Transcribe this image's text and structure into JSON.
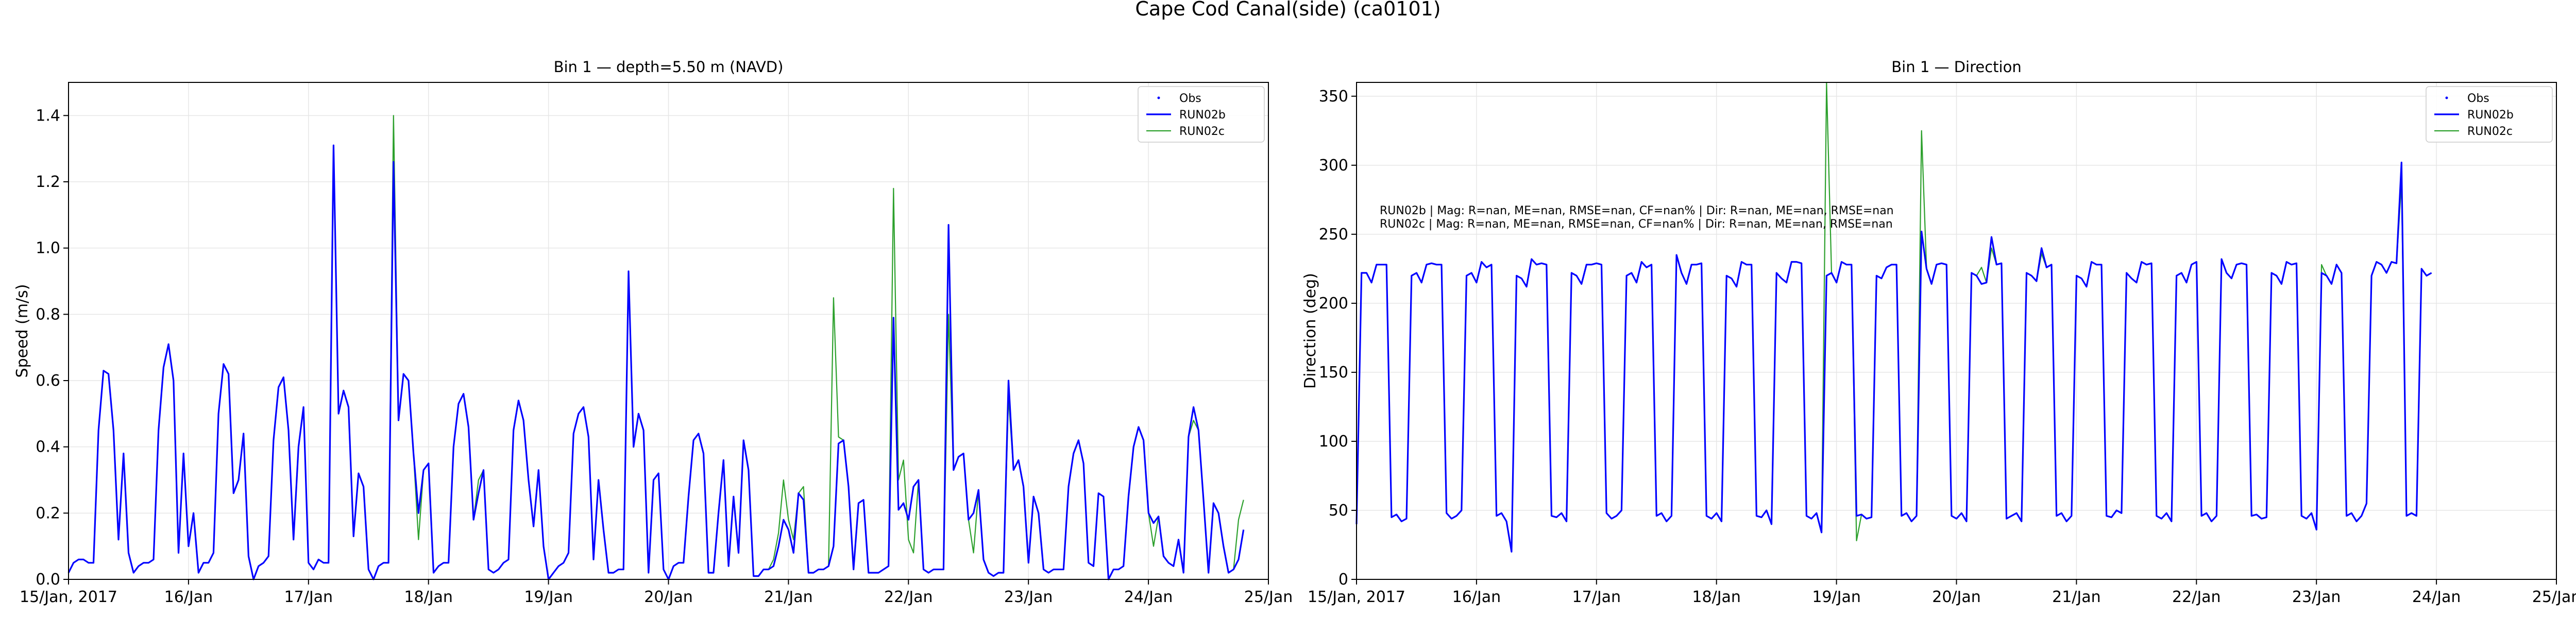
{
  "suptitle": "Cape Cod Canal(side) (ca0101)",
  "colors": {
    "obs": "#0000ff",
    "run02b": "#0000ff",
    "run02c": "#2ca02c",
    "grid": "#e6e6e6",
    "axis": "#000000"
  },
  "chart_data": [
    {
      "type": "line",
      "title": "Bin 1 — depth=5.50 m (NAVD)",
      "xlabel": "",
      "ylabel": "Speed (m/s)",
      "xlim": [
        0,
        10
      ],
      "ylim": [
        0,
        1.5
      ],
      "x_ticks": [
        0,
        1,
        2,
        3,
        4,
        5,
        6,
        7,
        8,
        9,
        10
      ],
      "x_tick_labels": [
        "15/Jan, 2017",
        "16/Jan",
        "17/Jan",
        "18/Jan",
        "19/Jan",
        "20/Jan",
        "21/Jan",
        "22/Jan",
        "23/Jan",
        "24/Jan",
        "25/Jan"
      ],
      "y_ticks": [
        0.0,
        0.2,
        0.4,
        0.6,
        0.8,
        1.0,
        1.2,
        1.4
      ],
      "y_tick_labels": [
        "0.0",
        "0.2",
        "0.4",
        "0.6",
        "0.8",
        "1.0",
        "1.2",
        "1.4"
      ],
      "grid": true,
      "legend_position": "top-right",
      "legend": [
        "Obs",
        "RUN02b",
        "RUN02c"
      ],
      "x_step_days": 0.04167,
      "series": [
        {
          "name": "Obs",
          "style": "markers",
          "values": []
        },
        {
          "name": "RUN02b",
          "style": "line",
          "values": [
            0.02,
            0.05,
            0.06,
            0.06,
            0.05,
            0.05,
            0.45,
            0.63,
            0.62,
            0.45,
            0.12,
            0.38,
            0.08,
            0.02,
            0.04,
            0.05,
            0.05,
            0.06,
            0.45,
            0.64,
            0.71,
            0.6,
            0.08,
            0.38,
            0.1,
            0.2,
            0.02,
            0.05,
            0.05,
            0.08,
            0.5,
            0.65,
            0.62,
            0.26,
            0.3,
            0.44,
            0.07,
            0.0,
            0.04,
            0.05,
            0.07,
            0.42,
            0.58,
            0.61,
            0.45,
            0.12,
            0.4,
            0.52,
            0.05,
            0.03,
            0.06,
            0.05,
            0.05,
            1.31,
            0.5,
            0.57,
            0.52,
            0.13,
            0.32,
            0.28,
            0.03,
            0.0,
            0.04,
            0.05,
            0.05,
            1.26,
            0.48,
            0.62,
            0.6,
            0.38,
            0.2,
            0.33,
            0.35,
            0.02,
            0.04,
            0.05,
            0.05,
            0.4,
            0.53,
            0.56,
            0.46,
            0.18,
            0.26,
            0.33,
            0.03,
            0.02,
            0.03,
            0.05,
            0.06,
            0.45,
            0.54,
            0.48,
            0.3,
            0.16,
            0.33,
            0.1,
            0.0,
            0.02,
            0.04,
            0.05,
            0.08,
            0.44,
            0.5,
            0.52,
            0.43,
            0.06,
            0.3,
            0.15,
            0.02,
            0.02,
            0.03,
            0.03,
            0.93,
            0.4,
            0.5,
            0.45,
            0.02,
            0.3,
            0.32,
            0.03,
            0.0,
            0.04,
            0.05,
            0.05,
            0.25,
            0.42,
            0.44,
            0.38,
            0.02,
            0.02,
            0.2,
            0.36,
            0.04,
            0.25,
            0.08,
            0.42,
            0.33,
            0.01,
            0.01,
            0.03,
            0.03,
            0.04,
            0.1,
            0.18,
            0.15,
            0.08,
            0.26,
            0.24,
            0.02,
            0.02,
            0.03,
            0.03,
            0.04,
            0.1,
            0.41,
            0.42,
            0.28,
            0.03,
            0.23,
            0.24,
            0.02,
            0.02,
            0.02,
            0.03,
            0.04,
            0.79,
            0.21,
            0.23,
            0.18,
            0.28,
            0.3,
            0.03,
            0.02,
            0.03,
            0.03,
            0.03,
            1.07,
            0.33,
            0.37,
            0.38,
            0.18,
            0.2,
            0.27,
            0.06,
            0.02,
            0.01,
            0.02,
            0.02,
            0.6,
            0.33,
            0.36,
            0.28,
            0.05,
            0.25,
            0.2,
            0.03,
            0.02,
            0.03,
            0.03,
            0.03,
            0.28,
            0.38,
            0.42,
            0.35,
            0.05,
            0.04,
            0.26,
            0.25,
            0.0,
            0.03,
            0.03,
            0.04,
            0.25,
            0.4,
            0.46,
            0.42,
            0.2,
            0.17,
            0.19,
            0.07,
            0.05,
            0.04,
            0.12,
            0.02,
            0.43,
            0.52,
            0.45,
            0.24,
            0.02,
            0.23,
            0.2,
            0.1,
            0.02,
            0.03,
            0.06,
            0.15
          ]
        },
        {
          "name": "RUN02c",
          "style": "line",
          "values": [
            0.02,
            0.05,
            0.06,
            0.06,
            0.05,
            0.05,
            0.45,
            0.63,
            0.62,
            0.45,
            0.12,
            0.38,
            0.08,
            0.02,
            0.04,
            0.05,
            0.05,
            0.06,
            0.45,
            0.64,
            0.71,
            0.6,
            0.08,
            0.38,
            0.1,
            0.2,
            0.02,
            0.05,
            0.05,
            0.08,
            0.5,
            0.65,
            0.62,
            0.26,
            0.3,
            0.44,
            0.07,
            0.0,
            0.04,
            0.05,
            0.07,
            0.42,
            0.58,
            0.61,
            0.45,
            0.12,
            0.4,
            0.52,
            0.05,
            0.03,
            0.06,
            0.05,
            0.05,
            1.31,
            0.5,
            0.57,
            0.52,
            0.13,
            0.32,
            0.28,
            0.03,
            0.0,
            0.04,
            0.05,
            0.05,
            1.4,
            0.48,
            0.62,
            0.6,
            0.38,
            0.12,
            0.33,
            0.35,
            0.02,
            0.04,
            0.05,
            0.05,
            0.4,
            0.53,
            0.56,
            0.46,
            0.18,
            0.3,
            0.33,
            0.03,
            0.02,
            0.03,
            0.05,
            0.06,
            0.45,
            0.54,
            0.48,
            0.3,
            0.16,
            0.33,
            0.1,
            0.0,
            0.02,
            0.04,
            0.05,
            0.08,
            0.44,
            0.5,
            0.52,
            0.43,
            0.06,
            0.3,
            0.15,
            0.02,
            0.02,
            0.03,
            0.03,
            0.93,
            0.4,
            0.5,
            0.45,
            0.02,
            0.3,
            0.32,
            0.03,
            0.0,
            0.04,
            0.05,
            0.05,
            0.25,
            0.42,
            0.44,
            0.38,
            0.02,
            0.02,
            0.2,
            0.36,
            0.04,
            0.25,
            0.08,
            0.42,
            0.33,
            0.01,
            0.01,
            0.03,
            0.03,
            0.06,
            0.14,
            0.3,
            0.18,
            0.12,
            0.26,
            0.28,
            0.02,
            0.02,
            0.03,
            0.03,
            0.04,
            0.85,
            0.43,
            0.42,
            0.28,
            0.03,
            0.23,
            0.24,
            0.02,
            0.02,
            0.02,
            0.03,
            0.04,
            1.18,
            0.3,
            0.36,
            0.12,
            0.08,
            0.3,
            0.03,
            0.02,
            0.03,
            0.03,
            0.03,
            0.8,
            0.33,
            0.37,
            0.38,
            0.18,
            0.08,
            0.27,
            0.06,
            0.02,
            0.01,
            0.02,
            0.02,
            0.55,
            0.33,
            0.36,
            0.28,
            0.05,
            0.25,
            0.2,
            0.03,
            0.02,
            0.03,
            0.03,
            0.03,
            0.28,
            0.38,
            0.42,
            0.35,
            0.05,
            0.04,
            0.26,
            0.25,
            0.0,
            0.03,
            0.03,
            0.04,
            0.25,
            0.4,
            0.46,
            0.42,
            0.2,
            0.1,
            0.19,
            0.07,
            0.05,
            0.04,
            0.12,
            0.02,
            0.43,
            0.48,
            0.45,
            0.24,
            0.02,
            0.23,
            0.2,
            0.1,
            0.02,
            0.03,
            0.18,
            0.24
          ]
        }
      ]
    },
    {
      "type": "line",
      "title": "Bin 1 — Direction",
      "xlabel": "",
      "ylabel": "Direction (deg)",
      "xlim": [
        0,
        10
      ],
      "ylim": [
        0,
        360
      ],
      "x_ticks": [
        0,
        1,
        2,
        3,
        4,
        5,
        6,
        7,
        8,
        9,
        10
      ],
      "x_tick_labels": [
        "15/Jan, 2017",
        "16/Jan",
        "17/Jan",
        "18/Jan",
        "19/Jan",
        "20/Jan",
        "21/Jan",
        "22/Jan",
        "23/Jan",
        "24/Jan",
        "25/Jan"
      ],
      "y_ticks": [
        0,
        50,
        100,
        150,
        200,
        250,
        300,
        350
      ],
      "y_tick_labels": [
        "0",
        "50",
        "100",
        "150",
        "200",
        "250",
        "300",
        "350"
      ],
      "grid": true,
      "legend_position": "top-right",
      "legend": [
        "Obs",
        "RUN02b",
        "RUN02c"
      ],
      "annotations": [
        "RUN02b | Mag: R=nan, ME=nan, RMSE=nan, CF=nan% | Dir: R=nan, ME=nan, RMSE=nan",
        "RUN02c | Mag: R=nan, ME=nan, RMSE=nan, CF=nan% | Dir: R=nan, ME=nan, RMSE=nan"
      ],
      "x_step_days": 0.04167,
      "series": [
        {
          "name": "Obs",
          "style": "markers",
          "values": []
        },
        {
          "name": "RUN02b",
          "style": "line",
          "values": [
            40,
            222,
            222,
            215,
            228,
            228,
            228,
            45,
            47,
            42,
            44,
            220,
            222,
            215,
            228,
            229,
            228,
            228,
            48,
            44,
            46,
            50,
            220,
            222,
            215,
            230,
            226,
            228,
            46,
            48,
            42,
            20,
            220,
            218,
            212,
            232,
            228,
            229,
            228,
            46,
            45,
            48,
            42,
            222,
            220,
            214,
            228,
            228,
            229,
            228,
            48,
            44,
            46,
            50,
            220,
            222,
            215,
            230,
            226,
            228,
            46,
            48,
            42,
            46,
            235,
            222,
            214,
            228,
            228,
            229,
            46,
            44,
            48,
            42,
            220,
            218,
            212,
            230,
            228,
            228,
            46,
            45,
            50,
            40,
            222,
            218,
            215,
            230,
            230,
            229,
            46,
            44,
            48,
            34,
            220,
            222,
            215,
            230,
            228,
            228,
            46,
            47,
            44,
            45,
            220,
            218,
            226,
            228,
            228,
            46,
            48,
            42,
            46,
            252,
            225,
            214,
            228,
            229,
            228,
            46,
            44,
            48,
            42,
            222,
            220,
            214,
            215,
            248,
            228,
            229,
            44,
            46,
            48,
            42,
            222,
            220,
            216,
            240,
            226,
            228,
            46,
            48,
            42,
            46,
            220,
            218,
            212,
            230,
            228,
            228,
            46,
            45,
            50,
            48,
            222,
            218,
            215,
            230,
            228,
            229,
            46,
            44,
            48,
            42,
            220,
            222,
            215,
            228,
            230,
            46,
            48,
            42,
            46,
            232,
            222,
            218,
            228,
            229,
            228,
            46,
            47,
            44,
            45,
            222,
            220,
            214,
            230,
            228,
            229,
            46,
            44,
            48,
            36,
            222,
            220,
            214,
            228,
            222,
            46,
            48,
            42,
            46,
            55,
            220,
            230,
            228,
            222,
            230,
            229,
            302,
            46,
            48,
            46,
            225,
            220,
            222
          ]
        },
        {
          "name": "RUN02c",
          "style": "line",
          "values": [
            40,
            222,
            222,
            215,
            228,
            228,
            228,
            45,
            47,
            42,
            44,
            220,
            222,
            215,
            228,
            229,
            228,
            228,
            48,
            44,
            46,
            50,
            220,
            222,
            215,
            230,
            226,
            228,
            46,
            48,
            42,
            20,
            220,
            218,
            212,
            232,
            228,
            229,
            228,
            46,
            45,
            48,
            42,
            222,
            220,
            214,
            228,
            228,
            229,
            228,
            48,
            44,
            46,
            50,
            220,
            222,
            215,
            230,
            226,
            228,
            46,
            48,
            42,
            46,
            235,
            222,
            214,
            228,
            228,
            229,
            46,
            44,
            48,
            42,
            220,
            218,
            212,
            230,
            228,
            228,
            46,
            45,
            50,
            40,
            222,
            218,
            215,
            230,
            230,
            229,
            46,
            44,
            48,
            34,
            360,
            222,
            215,
            230,
            228,
            228,
            28,
            47,
            44,
            45,
            220,
            218,
            226,
            228,
            228,
            46,
            48,
            42,
            46,
            325,
            225,
            214,
            228,
            229,
            228,
            46,
            44,
            48,
            42,
            222,
            220,
            226,
            215,
            240,
            228,
            229,
            44,
            46,
            48,
            42,
            222,
            220,
            216,
            236,
            226,
            228,
            46,
            48,
            42,
            46,
            220,
            218,
            212,
            230,
            228,
            228,
            46,
            45,
            50,
            48,
            222,
            218,
            215,
            230,
            228,
            229,
            46,
            44,
            48,
            42,
            220,
            222,
            215,
            228,
            230,
            46,
            48,
            42,
            46,
            232,
            222,
            218,
            228,
            229,
            228,
            46,
            47,
            44,
            45,
            222,
            220,
            214,
            230,
            228,
            229,
            46,
            44,
            48,
            36,
            228,
            220,
            214,
            228,
            222,
            46,
            48,
            42,
            46,
            55,
            220,
            230,
            228,
            222,
            230,
            229,
            288,
            46,
            48,
            46,
            225,
            220,
            222
          ]
        }
      ]
    }
  ]
}
